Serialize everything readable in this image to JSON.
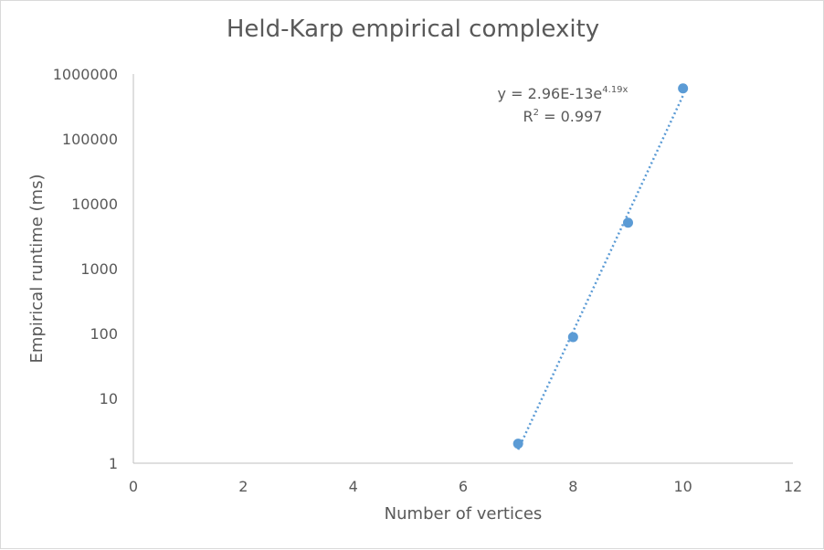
{
  "chart_data": {
    "type": "scatter",
    "title": "Held-Karp empirical complexity",
    "xlabel": "Number of vertices",
    "ylabel": "Empirical runtime (ms)",
    "xlim": [
      0,
      12
    ],
    "ylim": [
      1,
      1000000
    ],
    "y_scale": "log",
    "grid": false,
    "x_ticks": [
      "0",
      "2",
      "4",
      "6",
      "8",
      "10",
      "12"
    ],
    "y_ticks": [
      "1",
      "10",
      "100",
      "1000",
      "10000",
      "100000",
      "1000000"
    ],
    "series": [
      {
        "x": [
          7,
          8,
          9,
          10
        ],
        "y": [
          2,
          88,
          5100,
          600000
        ],
        "color": "#5b9bd5"
      }
    ],
    "trendline": {
      "type": "exponential",
      "a": 2.96e-13,
      "b": 4.19,
      "x_range": [
        7,
        10
      ],
      "color": "#5b9bd5",
      "equation_prefix": "y = 2.96E-13e",
      "equation_exponent": "4.19x",
      "r2_prefix": "R",
      "r2_exponent": "2",
      "r2_suffix": " = 0.997"
    }
  }
}
